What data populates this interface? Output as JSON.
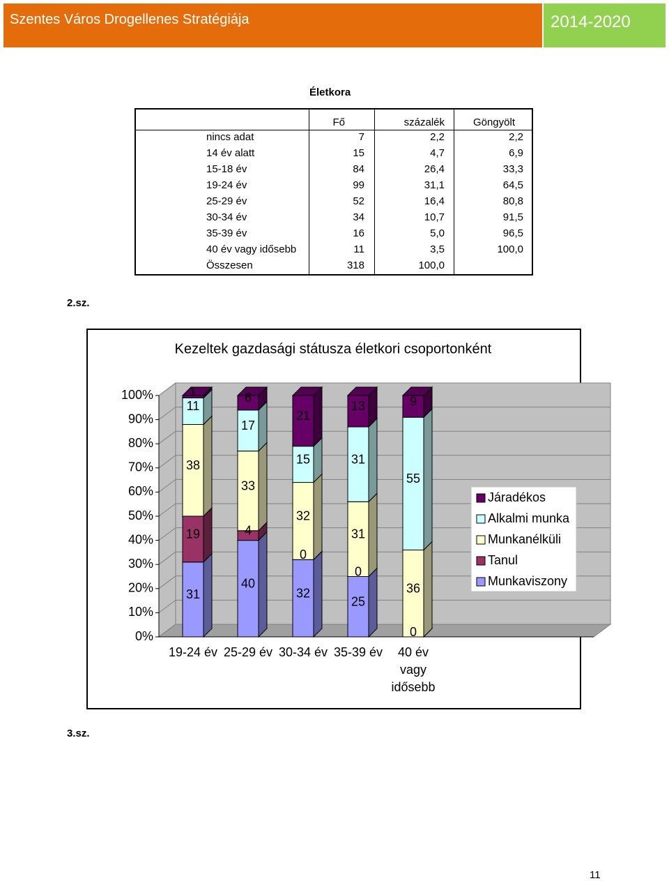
{
  "header": {
    "title": "Szentes Város Drogellenes Stratégiája",
    "years": "2014-2020"
  },
  "table": {
    "title": "Életkora",
    "columns": [
      "Fő",
      "százalék",
      "Göngyölt"
    ],
    "rows": [
      [
        "nincs adat",
        "7",
        "2,2",
        "2,2"
      ],
      [
        "14 év alatt",
        "15",
        "4,7",
        "6,9"
      ],
      [
        "15-18 év",
        "84",
        "26,4",
        "33,3"
      ],
      [
        "19-24 év",
        "99",
        "31,1",
        "64,5"
      ],
      [
        "25-29 év",
        "52",
        "16,4",
        "80,8"
      ],
      [
        "30-34 év",
        "34",
        "10,7",
        "91,5"
      ],
      [
        "35-39 év",
        "16",
        "5,0",
        "96,5"
      ],
      [
        "40 év vagy idősebb",
        "11",
        "3,5",
        "100,0"
      ],
      [
        "Összesen",
        "318",
        "100,0"
      ]
    ]
  },
  "caption_1": "2.sz.",
  "chart_data": {
    "type": "stacked_bar_3d",
    "title": "Kezeltek gazdasági státusza életkori csoportonként",
    "categories": [
      "19-24 év",
      "25-29 év",
      "30-34 év",
      "35-39 év",
      "40 év vagy idősebb"
    ],
    "series": [
      {
        "name": "Munkaviszony",
        "color": "#9999ff",
        "values": [
          31,
          40,
          32,
          25,
          0
        ]
      },
      {
        "name": "Tanul",
        "color": "#993366",
        "values": [
          19,
          4,
          0,
          0,
          null
        ]
      },
      {
        "name": "Munkanélküli",
        "color": "#ffffcc",
        "values": [
          38,
          33,
          32,
          31,
          36
        ]
      },
      {
        "name": "Alkalmi munka",
        "color": "#ccffff",
        "values": [
          11,
          17,
          15,
          31,
          55
        ]
      },
      {
        "name": "Járadékos",
        "color": "#660066",
        "values": [
          1,
          6,
          21,
          13,
          9
        ]
      }
    ],
    "ylim": [
      0,
      100
    ],
    "yticks": [
      {
        "value": 0,
        "label": "0%"
      },
      {
        "value": 10,
        "label": "10%"
      },
      {
        "value": 20,
        "label": "20%"
      },
      {
        "value": 30,
        "label": "30%"
      },
      {
        "value": 40,
        "label": "40%"
      },
      {
        "value": 50,
        "label": "50%"
      },
      {
        "value": 60,
        "label": "60%"
      },
      {
        "value": 70,
        "label": "70%"
      },
      {
        "value": 80,
        "label": "80%"
      },
      {
        "value": 90,
        "label": "90%"
      },
      {
        "value": 100,
        "label": "100%"
      }
    ]
  },
  "caption_2": "3.sz.",
  "page_number": "11"
}
